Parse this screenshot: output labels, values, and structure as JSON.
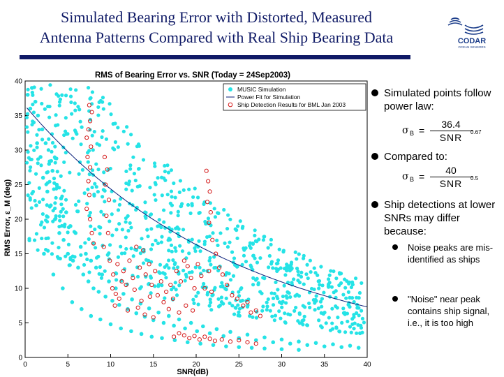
{
  "slide": {
    "title_line1": "Simulated Bearing Error with Distorted, Measured",
    "title_line2": "Antenna Patterns Compared with Real Ship Bearing Data",
    "logo_text": "CODAR",
    "logo_subtext": "OCEAN SENSORS"
  },
  "bullets": {
    "b1": "Simulated points follow power law:",
    "b2": "Compared to:",
    "b3": "Ship detections at lower SNRs may differ because:",
    "b3a": "Noise peaks are mis-identified as ships",
    "b3b": "\"Noise\" near peak contains ship signal, i.e., it is too high"
  },
  "formula1": {
    "sigma": "σ",
    "sub": "B",
    "eq": "=",
    "numerator": "36.4",
    "denominator": "SNR",
    "exponent": "0.67"
  },
  "formula2": {
    "sigma": "σ",
    "sub": "B",
    "eq": "=",
    "numerator": "40",
    "denominator": "SNR",
    "exponent": "0.5"
  },
  "chart_data": {
    "type": "scatter",
    "title": "RMS of Bearing Error vs. SNR (Today = 24Sep2003)",
    "xlabel": "SNR(dB)",
    "ylabel": "RMS Error, ε_M (deg)",
    "xlim": [
      0,
      40
    ],
    "ylim": [
      0,
      40
    ],
    "xticks": [
      0,
      5,
      10,
      15,
      20,
      25,
      30,
      35,
      40
    ],
    "yticks": [
      0,
      5,
      10,
      15,
      20,
      25,
      30,
      35,
      40
    ],
    "legend_position": "top-right",
    "series": [
      {
        "name": "MUSIC Simulation",
        "kind": "points",
        "color": "#25e3e6",
        "description_points": [
          [
            0.3,
            38
          ],
          [
            0.6,
            36
          ],
          [
            0.8,
            39
          ],
          [
            1.0,
            34
          ],
          [
            1.2,
            37
          ],
          [
            1.4,
            31
          ],
          [
            1.5,
            35
          ],
          [
            1.8,
            29
          ],
          [
            2.0,
            33
          ],
          [
            2.1,
            26
          ],
          [
            2.4,
            31
          ],
          [
            2.6,
            24
          ],
          [
            2.8,
            28
          ],
          [
            3.0,
            22
          ],
          [
            3.2,
            27
          ],
          [
            3.5,
            20
          ],
          [
            3.7,
            25
          ],
          [
            4.0,
            18
          ],
          [
            4.2,
            23
          ],
          [
            4.5,
            17
          ],
          [
            4.8,
            21
          ],
          [
            5.0,
            15
          ],
          [
            5.3,
            19
          ],
          [
            5.6,
            14
          ],
          [
            5.9,
            18
          ],
          [
            6.2,
            13
          ],
          [
            6.5,
            16
          ],
          [
            6.8,
            12
          ],
          [
            7.1,
            15
          ],
          [
            7.4,
            11
          ],
          [
            7.7,
            14
          ],
          [
            8.0,
            10
          ],
          [
            8.3,
            13
          ],
          [
            8.6,
            9.5
          ],
          [
            9.0,
            12
          ],
          [
            9.4,
            8.8
          ],
          [
            9.8,
            11
          ],
          [
            10.2,
            8.2
          ],
          [
            10.6,
            10
          ],
          [
            11.0,
            7.6
          ],
          [
            11.5,
            9.2
          ],
          [
            12.0,
            7.0
          ],
          [
            12.5,
            8.4
          ],
          [
            13.0,
            6.4
          ],
          [
            13.5,
            7.8
          ],
          [
            14.0,
            5.9
          ],
          [
            14.5,
            7.1
          ],
          [
            15.0,
            5.4
          ],
          [
            15.6,
            6.5
          ],
          [
            16.2,
            5.0
          ],
          [
            16.8,
            6.0
          ],
          [
            17.4,
            4.6
          ],
          [
            18.0,
            5.5
          ],
          [
            18.7,
            4.2
          ],
          [
            19.4,
            5.0
          ],
          [
            20.1,
            3.8
          ],
          [
            20.8,
            4.5
          ],
          [
            21.6,
            3.5
          ],
          [
            22.4,
            4.1
          ],
          [
            23.2,
            3.1
          ],
          [
            24.0,
            3.7
          ],
          [
            25.0,
            2.8
          ],
          [
            26.0,
            3.3
          ],
          [
            27.0,
            2.5
          ],
          [
            28.0,
            2.9
          ],
          [
            29.0,
            2.2
          ],
          [
            30.0,
            2.6
          ],
          [
            31.0,
            2.0
          ],
          [
            32.0,
            2.3
          ],
          [
            33.0,
            1.8
          ],
          [
            34.0,
            2.1
          ],
          [
            35.0,
            1.6
          ],
          [
            36.0,
            1.9
          ],
          [
            37.0,
            1.5
          ],
          [
            38.0,
            1.7
          ],
          [
            39.0,
            1.4
          ],
          [
            1.3,
            22
          ],
          [
            2.2,
            15
          ],
          [
            3.3,
            12
          ],
          [
            4.4,
            10
          ],
          [
            5.5,
            8
          ],
          [
            6.6,
            7
          ],
          [
            7.7,
            6
          ],
          [
            8.8,
            5.5
          ],
          [
            10.0,
            4.8
          ],
          [
            11.2,
            4.2
          ],
          [
            12.4,
            3.8
          ],
          [
            13.6,
            3.4
          ],
          [
            14.8,
            3.0
          ],
          [
            16.0,
            2.8
          ],
          [
            17.5,
            2.5
          ],
          [
            19.0,
            2.2
          ],
          [
            20.5,
            2.0
          ],
          [
            22.0,
            1.8
          ],
          [
            23.5,
            1.6
          ],
          [
            25.0,
            1.5
          ],
          [
            26.5,
            1.4
          ],
          [
            28.0,
            1.3
          ],
          [
            30.0,
            1.2
          ],
          [
            32.0,
            1.1
          ]
        ]
      },
      {
        "name": "Power Fit for Simulation",
        "kind": "line",
        "color": "#0a1f7a",
        "fit": {
          "a": 36.4,
          "b": 0.67
        }
      },
      {
        "name": "Ship Detection Results for BML Jan 2003",
        "kind": "circles",
        "color": "#d41c1c",
        "points": [
          [
            7.5,
            36.5
          ],
          [
            7.8,
            35.5
          ],
          [
            7.6,
            34.2
          ],
          [
            7.4,
            33.0
          ],
          [
            7.2,
            31.8
          ],
          [
            7.7,
            30.5
          ],
          [
            7.3,
            29.0
          ],
          [
            7.6,
            27.5
          ],
          [
            7.4,
            25.5
          ],
          [
            7.5,
            23.5
          ],
          [
            7.2,
            21.5
          ],
          [
            7.6,
            20.0
          ],
          [
            7.8,
            18.0
          ],
          [
            8.0,
            16.5
          ],
          [
            9.3,
            29.0
          ],
          [
            9.6,
            27.2
          ],
          [
            9.4,
            25.0
          ],
          [
            9.8,
            22.8
          ],
          [
            9.5,
            20.5
          ],
          [
            9.7,
            18.0
          ],
          [
            9.2,
            16.0
          ],
          [
            9.9,
            14.0
          ],
          [
            10.3,
            12.0
          ],
          [
            10.8,
            13.5
          ],
          [
            11.5,
            12.5
          ],
          [
            11.8,
            10.5
          ],
          [
            12.2,
            14.0
          ],
          [
            12.6,
            11.5
          ],
          [
            13.0,
            16.0
          ],
          [
            13.4,
            13.0
          ],
          [
            13.8,
            15.5
          ],
          [
            14.1,
            12.0
          ],
          [
            14.5,
            13.5
          ],
          [
            14.8,
            10.5
          ],
          [
            15.2,
            12.5
          ],
          [
            15.5,
            9.0
          ],
          [
            15.9,
            11.0
          ],
          [
            16.2,
            8.0
          ],
          [
            16.5,
            9.5
          ],
          [
            17.0,
            10.5
          ],
          [
            17.3,
            8.5
          ],
          [
            17.7,
            12.5
          ],
          [
            18.2,
            11.0
          ],
          [
            18.6,
            14.0
          ],
          [
            19.0,
            13.2
          ],
          [
            19.4,
            11.5
          ],
          [
            19.8,
            10.0
          ],
          [
            20.2,
            13.5
          ],
          [
            20.6,
            11.8
          ],
          [
            21.0,
            10.0
          ],
          [
            21.5,
            12.5
          ],
          [
            21.8,
            9.5
          ],
          [
            21.2,
            27.0
          ],
          [
            21.4,
            25.5
          ],
          [
            21.6,
            24.0
          ],
          [
            21.3,
            22.5
          ],
          [
            21.7,
            21.0
          ],
          [
            21.5,
            19.5
          ],
          [
            21.9,
            17.0
          ],
          [
            22.3,
            15.0
          ],
          [
            22.7,
            13.0
          ],
          [
            23.1,
            12.0
          ],
          [
            23.6,
            10.5
          ],
          [
            24.2,
            9.0
          ],
          [
            24.8,
            8.5
          ],
          [
            25.5,
            7.5
          ],
          [
            26.0,
            8.0
          ],
          [
            26.4,
            6.5
          ],
          [
            27.0,
            6.8
          ],
          [
            27.5,
            6.0
          ],
          [
            17.4,
            3.0
          ],
          [
            18.0,
            3.5
          ],
          [
            18.6,
            3.2
          ],
          [
            19.2,
            2.8
          ],
          [
            19.8,
            3.1
          ],
          [
            20.4,
            2.6
          ],
          [
            21.0,
            3.0
          ],
          [
            21.6,
            2.7
          ],
          [
            22.2,
            2.4
          ],
          [
            23.0,
            2.6
          ],
          [
            24.0,
            2.3
          ],
          [
            25.0,
            2.5
          ],
          [
            26.0,
            2.2
          ],
          [
            27.0,
            2.0
          ],
          [
            11.0,
            8.5
          ],
          [
            10.5,
            7.5
          ],
          [
            12.0,
            6.8
          ],
          [
            13.2,
            7.2
          ],
          [
            14.0,
            6.2
          ],
          [
            15.0,
            5.8
          ],
          [
            10.2,
            10.0
          ],
          [
            10.6,
            9.2
          ],
          [
            11.3,
            11.0
          ],
          [
            12.8,
            9.8
          ],
          [
            13.6,
            8.2
          ],
          [
            14.6,
            8.8
          ],
          [
            16.8,
            7.0
          ],
          [
            18.0,
            6.5
          ],
          [
            18.8,
            7.5
          ],
          [
            19.6,
            6.8
          ]
        ]
      }
    ]
  }
}
